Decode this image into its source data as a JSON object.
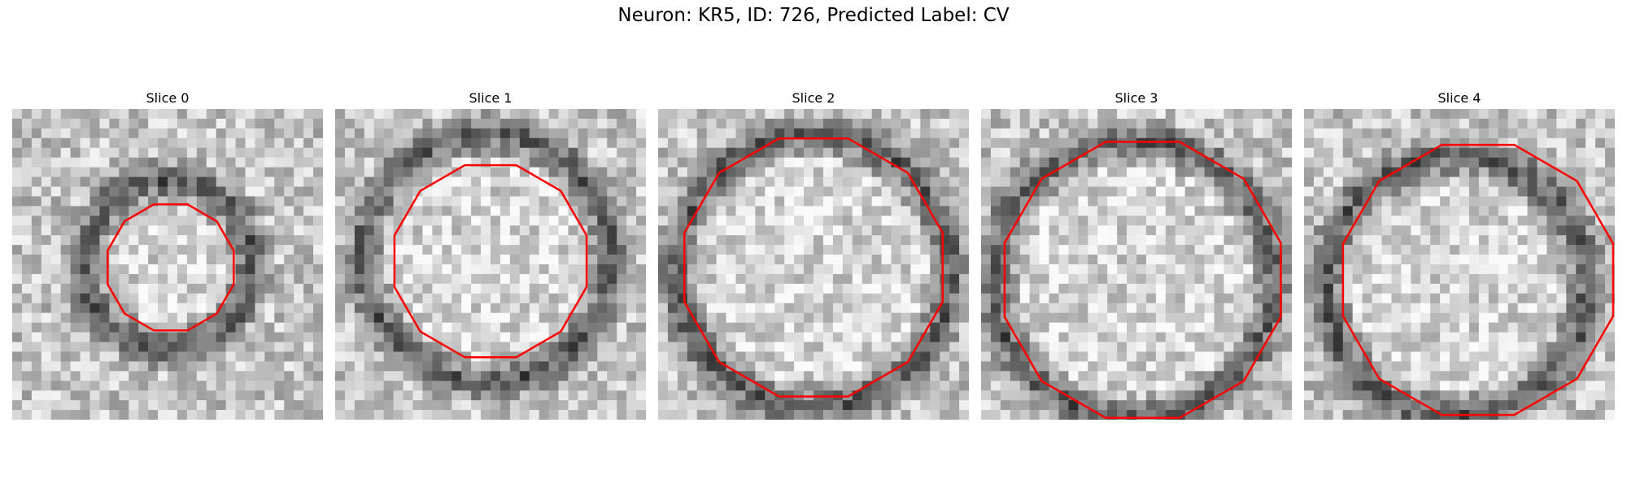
{
  "figure": {
    "title": "Neuron: KR5, ID: 726, Predicted Label: CV",
    "grid_size": 32,
    "contour_color": "#ff0000",
    "colormap": "grayscale",
    "panels": [
      {
        "label": "Slice 0",
        "ring_radius_frac": 0.27,
        "ring_center": [
          0.5,
          0.5
        ],
        "contour_radius_frac": 0.21,
        "contour_center": [
          0.51,
          0.51
        ]
      },
      {
        "label": "Slice 1",
        "ring_radius_frac": 0.4,
        "ring_center": [
          0.49,
          0.48
        ],
        "contour_radius_frac": 0.32,
        "contour_center": [
          0.5,
          0.49
        ]
      },
      {
        "label": "Slice 2",
        "ring_radius_frac": 0.44,
        "ring_center": [
          0.5,
          0.52
        ],
        "contour_radius_frac": 0.43,
        "contour_center": [
          0.5,
          0.51
        ]
      },
      {
        "label": "Slice 3",
        "ring_radius_frac": 0.45,
        "ring_center": [
          0.49,
          0.55
        ],
        "contour_radius_frac": 0.46,
        "contour_center": [
          0.52,
          0.55
        ]
      },
      {
        "label": "Slice 4",
        "ring_radius_frac": 0.42,
        "ring_center": [
          0.49,
          0.57
        ],
        "contour_radius_frac": 0.45,
        "contour_center": [
          0.56,
          0.55
        ]
      }
    ]
  }
}
